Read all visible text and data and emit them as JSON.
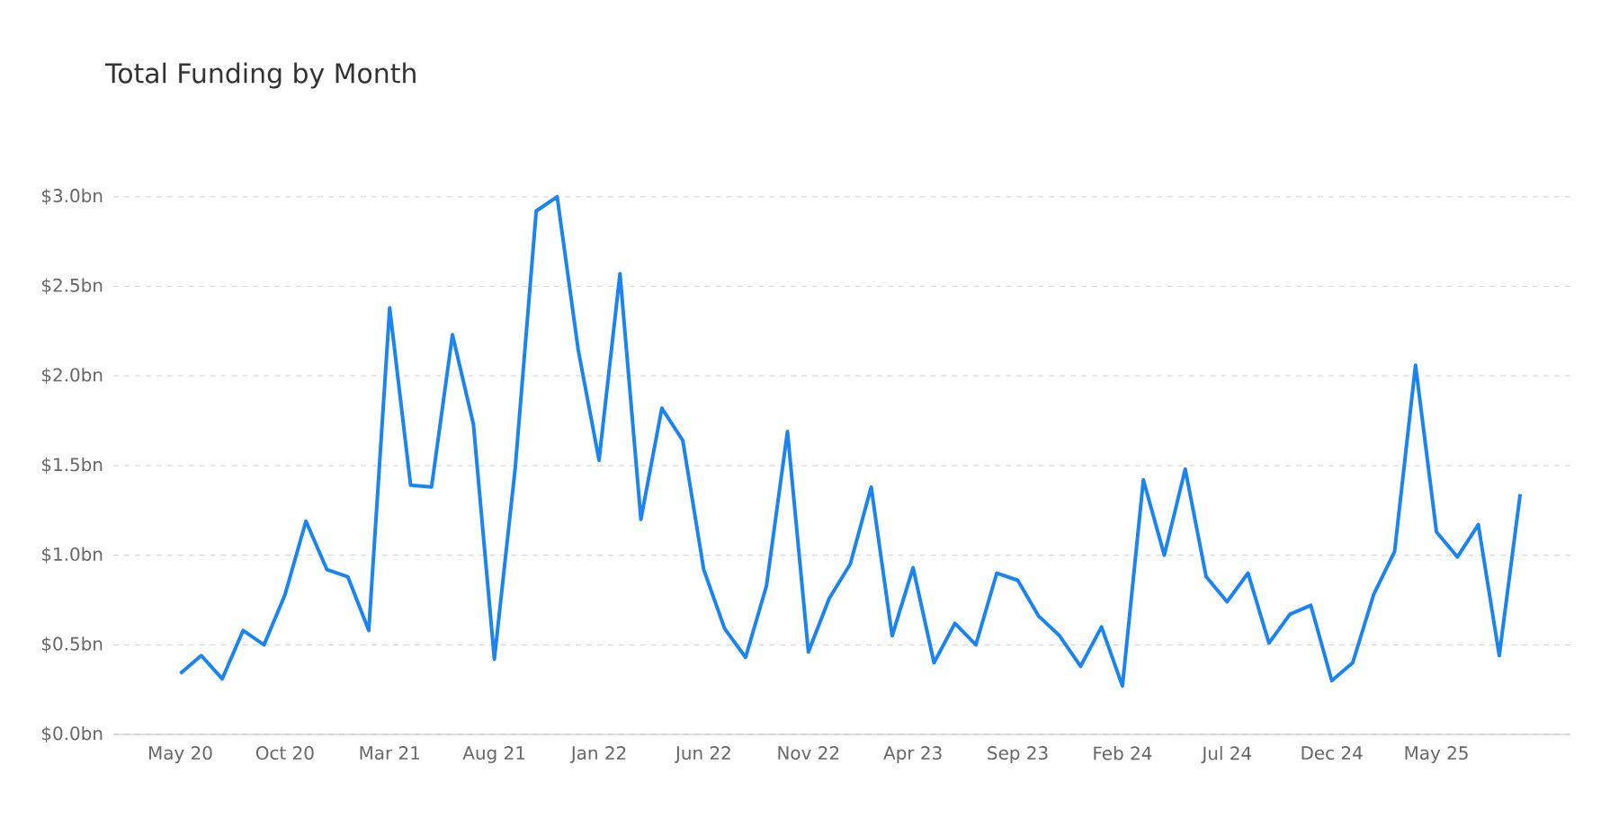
{
  "chart_data": {
    "type": "line",
    "title": "Total Funding by Month",
    "categories": [
      "May 20",
      null,
      null,
      null,
      null,
      "Oct 20",
      null,
      null,
      null,
      null,
      "Mar 21",
      null,
      null,
      null,
      null,
      "Aug 21",
      null,
      null,
      null,
      null,
      "Jan 22",
      null,
      null,
      null,
      null,
      "Jun 22",
      null,
      null,
      null,
      null,
      "Nov 22",
      null,
      null,
      null,
      null,
      "Apr 23",
      null,
      null,
      null,
      null,
      "Sep 23",
      null,
      null,
      null,
      null,
      "Feb 24",
      null,
      null,
      null,
      null,
      "Jul 24",
      null,
      null,
      null,
      null,
      "Dec 24",
      null,
      null,
      null,
      null,
      "May 25",
      null,
      null,
      null,
      null
    ],
    "values": [
      0.34,
      0.44,
      0.31,
      0.58,
      0.5,
      0.78,
      1.19,
      0.92,
      0.88,
      0.58,
      2.38,
      1.39,
      1.38,
      2.23,
      1.73,
      0.42,
      1.49,
      2.92,
      3.0,
      2.15,
      1.53,
      2.57,
      1.2,
      1.82,
      1.64,
      0.92,
      0.59,
      0.43,
      0.83,
      1.69,
      0.46,
      0.76,
      0.95,
      1.38,
      0.55,
      0.93,
      0.4,
      0.62,
      0.5,
      0.9,
      0.86,
      0.66,
      0.55,
      0.38,
      0.6,
      0.27,
      1.42,
      1.0,
      1.48,
      0.88,
      0.74,
      0.9,
      0.51,
      0.67,
      0.72,
      0.3,
      0.4,
      0.78,
      1.02,
      2.06,
      1.13,
      0.99,
      1.17,
      0.44,
      1.34
    ],
    "color": "#1a85f0",
    "ylim": [
      0,
      3.0
    ],
    "yticks": [
      {
        "value": 0,
        "label": "$0.0bn"
      },
      {
        "value": 0.5,
        "label": "$0.5bn"
      },
      {
        "value": 1.0,
        "label": "$1.0bn"
      },
      {
        "value": 1.5,
        "label": "$1.5bn"
      },
      {
        "value": 2.0,
        "label": "$2.0bn"
      },
      {
        "value": 2.5,
        "label": "$2.5bn"
      },
      {
        "value": 3.0,
        "label": "$3.0bn"
      }
    ],
    "grid": "y",
    "line_style": "solid",
    "marker": "none"
  }
}
